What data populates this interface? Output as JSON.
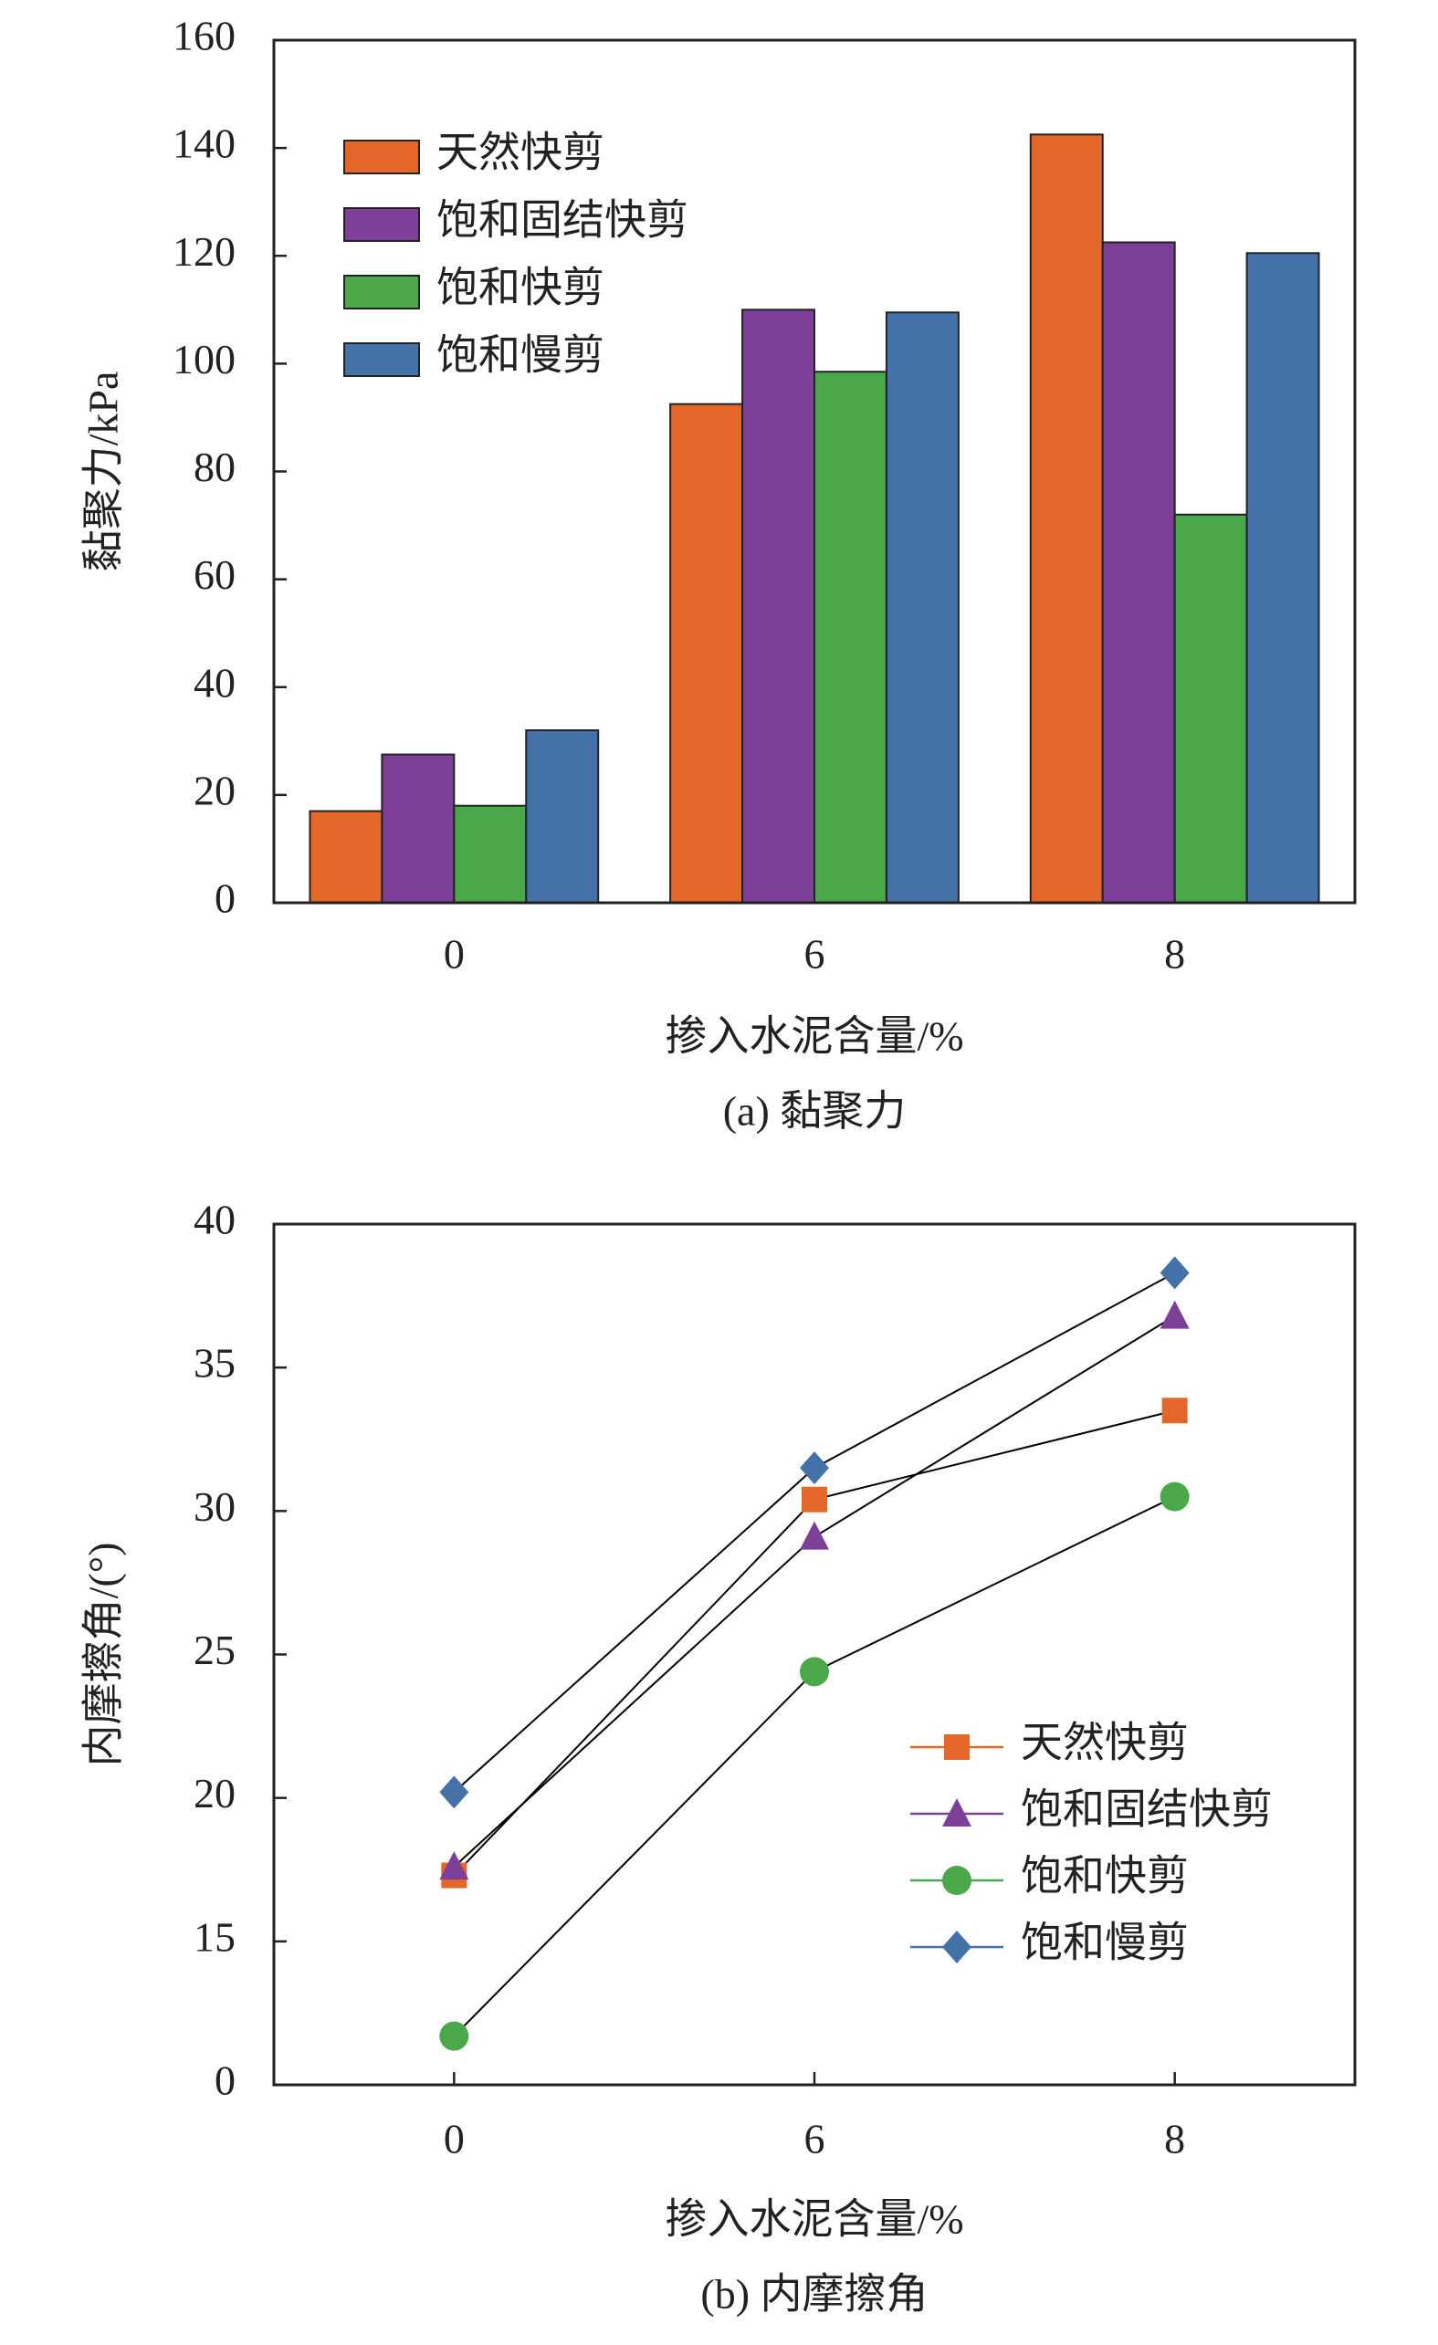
{
  "chart_data": [
    {
      "type": "bar",
      "caption": "(a) 黏聚力",
      "y_label": "黏聚力/kPa",
      "x_label": "掺入水泥含量/%",
      "categories": [
        "0",
        "6",
        "8"
      ],
      "series": [
        {
          "name": "天然快剪",
          "color": "#e4672a",
          "values": [
            17,
            92.5,
            142.5
          ]
        },
        {
          "name": "饱和固结快剪",
          "color": "#7e3f98",
          "values": [
            27.5,
            110,
            122.5
          ]
        },
        {
          "name": "饱和快剪",
          "color": "#4aa84a",
          "values": [
            18,
            98.5,
            72
          ]
        },
        {
          "name": "饱和慢剪",
          "color": "#4472a8",
          "values": [
            32,
            109.5,
            120.5
          ]
        }
      ],
      "ylim": [
        0,
        160
      ],
      "yticks": [
        0,
        20,
        40,
        60,
        80,
        100,
        120,
        140,
        160
      ],
      "legend": "upper left"
    },
    {
      "type": "line",
      "caption": "(b) 内摩擦角",
      "y_label": "内摩擦角/(°)",
      "x_label": "掺入水泥含量/%",
      "categories": [
        "0",
        "6",
        "8"
      ],
      "line_color": "#000000",
      "series": [
        {
          "name": "天然快剪",
          "color": "#e4672a",
          "marker": "square",
          "values": [
            17.3,
            30.4,
            33.5
          ]
        },
        {
          "name": "饱和固结快剪",
          "color": "#7e3f98",
          "marker": "triangle",
          "values": [
            17.6,
            29.1,
            36.8
          ]
        },
        {
          "name": "饱和快剪",
          "color": "#4aa84a",
          "marker": "circle",
          "values": [
            11.7,
            24.4,
            30.5
          ]
        },
        {
          "name": "饱和慢剪",
          "color": "#4472a8",
          "marker": "diamond",
          "values": [
            20.2,
            31.5,
            38.3
          ]
        }
      ],
      "ylim": [
        10,
        40
      ],
      "yticks": [
        {
          "value": 10,
          "label": "0"
        },
        15,
        20,
        25,
        30,
        35,
        40
      ],
      "legend": "lower right"
    }
  ]
}
